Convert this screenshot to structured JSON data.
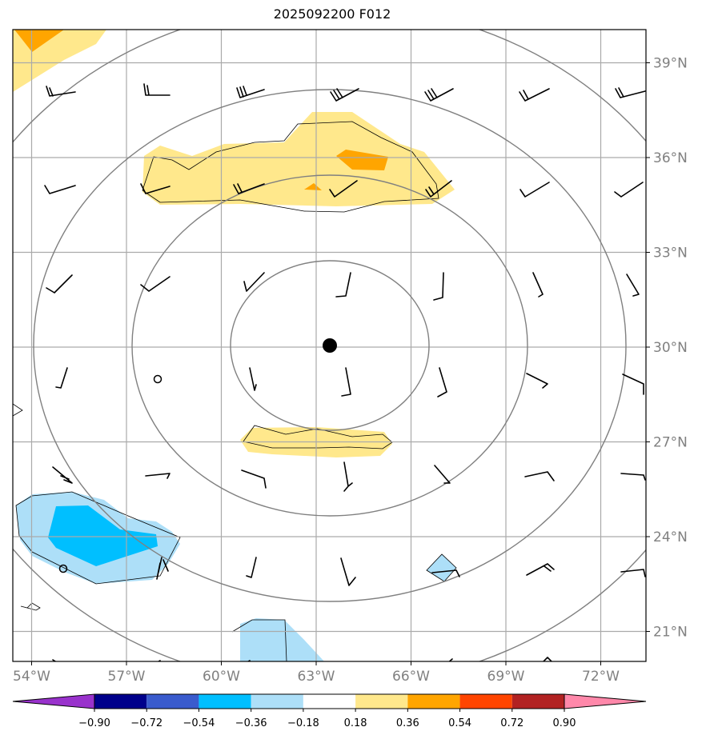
{
  "title": "2025092200 F012",
  "lat_labels": [
    "39°N",
    "36°N",
    "33°N",
    "30°N",
    "27°N",
    "24°N",
    "21°N"
  ],
  "lat_values": [
    39,
    36,
    33,
    30,
    27,
    24,
    21
  ],
  "lon_labels": [
    "72°W",
    "69°W",
    "66°W",
    "63°W",
    "60°W",
    "57°W",
    "54°W"
  ],
  "lon_values": [
    -72,
    -69,
    -66,
    -63,
    -60,
    -57,
    -54
  ],
  "center_marker": {
    "lat": 30.0,
    "lon": -62.6
  },
  "colorbar": {
    "tick_labels": [
      "−0.90",
      "−0.72",
      "−0.54",
      "−0.36",
      "−0.18",
      "0.18",
      "0.36",
      "0.54",
      "0.72",
      "0.90"
    ],
    "colors": [
      "#9932CC",
      "#00008B",
      "#3A5BCD",
      "#00BFFF",
      "#ADDFF8",
      "#FFFFFF",
      "#FFE88C",
      "#FFA500",
      "#FF4500",
      "#B22222",
      "#FF88AA"
    ]
  },
  "colors": {
    "grid": "#aaaaaa",
    "rings": "#808080",
    "marker": "#000000"
  }
}
